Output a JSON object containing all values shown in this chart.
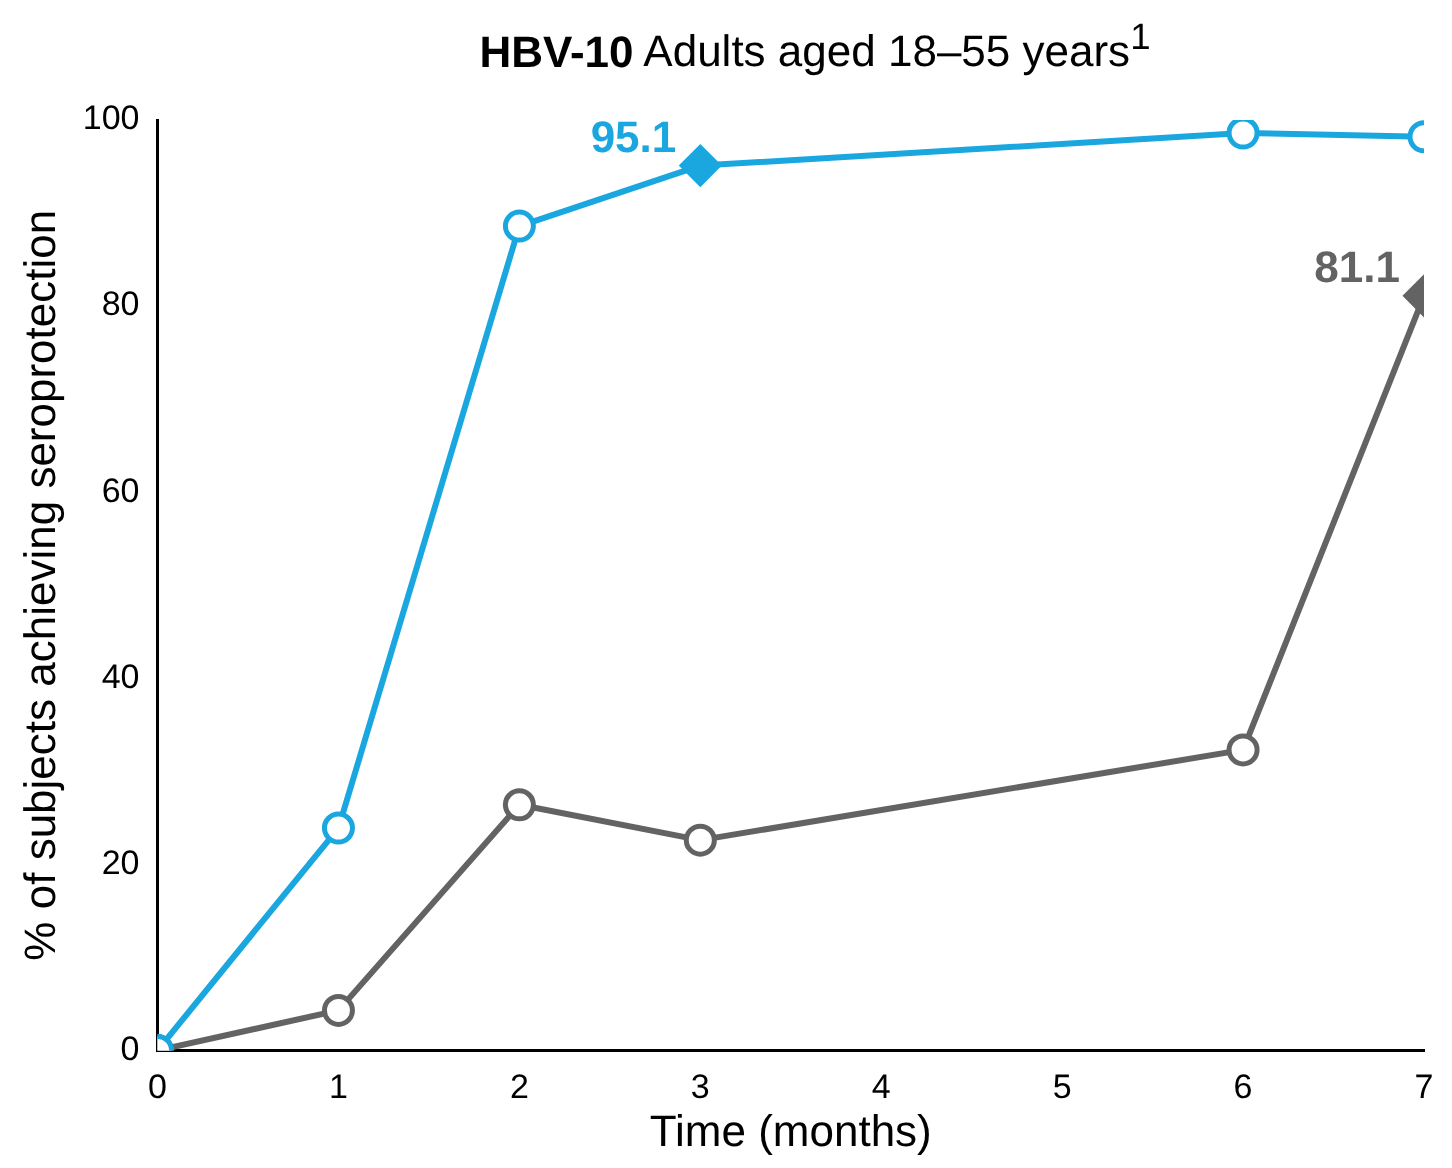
{
  "chart_data": {
    "type": "line",
    "title": "HBV-10 Adults aged 18–55 years$^{1}$",
    "xlabel": "Time (months)",
    "ylabel": "% of subjects achieving seroprotection",
    "x": [
      0,
      1,
      2,
      3,
      6,
      7
    ],
    "series": [
      {
        "color": "#1aa7e0",
        "values": [
          0,
          23.9,
          88.6,
          95.1,
          98.6,
          98.2
        ],
        "value_labels": [
          null,
          null,
          null,
          "95.1",
          null,
          null
        ]
      },
      {
        "color": "#636363",
        "values": [
          0,
          4.3,
          26.4,
          22.6,
          32.3,
          81.1
        ],
        "value_labels": [
          null,
          null,
          null,
          null,
          null,
          "81.1"
        ]
      }
    ],
    "xlim": [
      0,
      7
    ],
    "xticks": [
      0,
      1,
      2,
      3,
      4,
      5,
      6,
      7
    ],
    "ylim": [
      0,
      100
    ],
    "yticks": [
      0,
      20,
      40,
      60,
      80,
      100
    ],
    "grid": false,
    "legend": false,
    "marker": "circle",
    "line_style": "solid"
  }
}
